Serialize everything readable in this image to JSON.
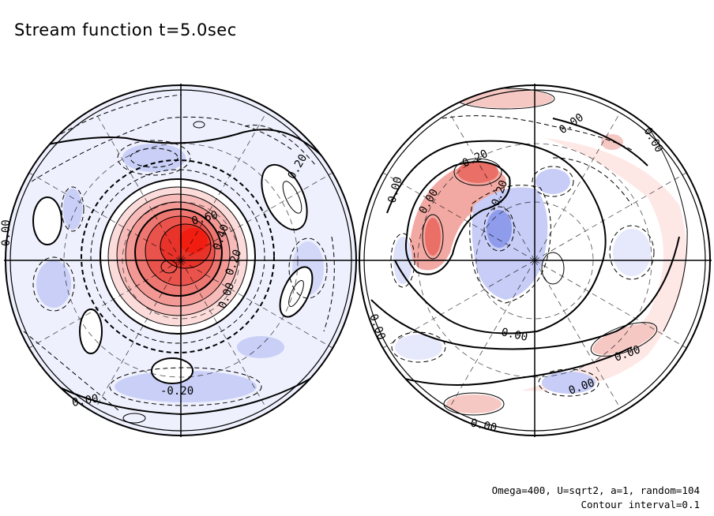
{
  "title": "Stream function t=5.0sec",
  "footer": {
    "params": "Omega=400, U=sqrt2, a=1, random=104",
    "interval": "Contour interval=0.1"
  },
  "colors": {
    "positive": "#e8332a",
    "negative": "#5a6fe0",
    "background": "#ffffff",
    "line": "#000000"
  },
  "hemispheres": [
    {
      "name": "left-hemisphere",
      "contour_labels": [
        "0.60",
        "0.40",
        "0.20",
        "0.00",
        "0.20",
        "-0.20",
        "0.00",
        "0.00"
      ]
    },
    {
      "name": "right-hemisphere",
      "contour_labels": [
        "0.00",
        "0.00",
        "0.20",
        "0.00",
        "0.00",
        "-0.20",
        "0.00",
        "0.00",
        "0.00",
        "0.00",
        "0.00"
      ]
    }
  ]
}
